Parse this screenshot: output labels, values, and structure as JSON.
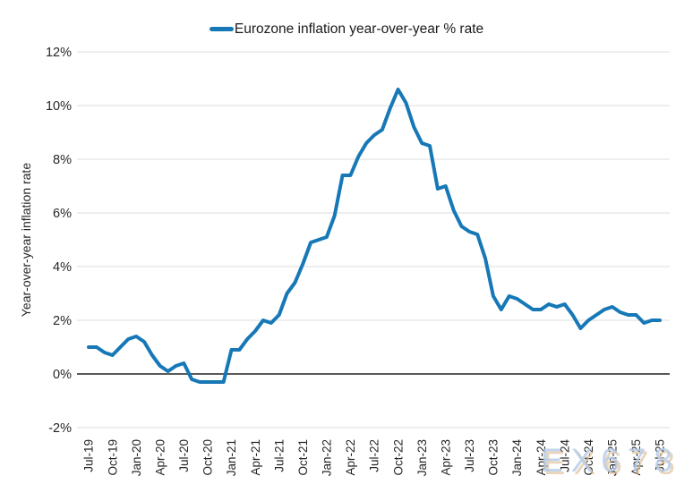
{
  "legend": {
    "label": "Eurozone inflation year-over-year % rate"
  },
  "watermark": {
    "text": "EX678"
  },
  "colors": {
    "line": "#1678b6",
    "zero_line": "#595959",
    "gridline": "#e4e4e4",
    "text": "#262626"
  },
  "chart_data": {
    "type": "line",
    "title": "",
    "xlabel": "",
    "ylabel": "Year-over-year inflation rate",
    "ylim": [
      -2,
      12
    ],
    "grid": "horizontal",
    "legend_position": "top-center",
    "y_ticks": [
      -2,
      0,
      2,
      4,
      6,
      8,
      10,
      12
    ],
    "y_tick_labels": [
      "-2%",
      "0%",
      "2%",
      "4%",
      "6%",
      "8%",
      "10%",
      "12%"
    ],
    "x_tick_labels": [
      "Jul-19",
      "Oct-19",
      "Jan-20",
      "Apr-20",
      "Jul-20",
      "Oct-20",
      "Jan-21",
      "Apr-21",
      "Jul-21",
      "Oct-21",
      "Jan-22",
      "Apr-22",
      "Jul-22",
      "Oct-22",
      "Jan-23",
      "Apr-23",
      "Jul-23",
      "Oct-23",
      "Jan-24",
      "Apr-24",
      "Jul-24",
      "Oct-24",
      "Jan-25",
      "Apr-25",
      "Jul-25"
    ],
    "x_tick_every_n_months": 3,
    "x": [
      "Jul-19",
      "Aug-19",
      "Sep-19",
      "Oct-19",
      "Nov-19",
      "Dec-19",
      "Jan-20",
      "Feb-20",
      "Mar-20",
      "Apr-20",
      "May-20",
      "Jun-20",
      "Jul-20",
      "Aug-20",
      "Sep-20",
      "Oct-20",
      "Nov-20",
      "Dec-20",
      "Jan-21",
      "Feb-21",
      "Mar-21",
      "Apr-21",
      "May-21",
      "Jun-21",
      "Jul-21",
      "Aug-21",
      "Sep-21",
      "Oct-21",
      "Nov-21",
      "Dec-21",
      "Jan-22",
      "Feb-22",
      "Mar-22",
      "Apr-22",
      "May-22",
      "Jun-22",
      "Jul-22",
      "Aug-22",
      "Sep-22",
      "Oct-22",
      "Nov-22",
      "Dec-22",
      "Jan-23",
      "Feb-23",
      "Mar-23",
      "Apr-23",
      "May-23",
      "Jun-23",
      "Jul-23",
      "Aug-23",
      "Sep-23",
      "Oct-23",
      "Nov-23",
      "Dec-23",
      "Jan-24",
      "Feb-24",
      "Mar-24",
      "Apr-24",
      "May-24",
      "Jun-24",
      "Jul-24",
      "Aug-24",
      "Sep-24",
      "Oct-24",
      "Nov-24",
      "Dec-24",
      "Jan-25",
      "Feb-25",
      "Mar-25",
      "Apr-25",
      "May-25",
      "Jun-25",
      "Jul-25"
    ],
    "series": [
      {
        "name": "Eurozone inflation year-over-year % rate",
        "color": "#1678b6",
        "values": [
          1.0,
          1.0,
          0.8,
          0.7,
          1.0,
          1.3,
          1.4,
          1.2,
          0.7,
          0.3,
          0.1,
          0.3,
          0.4,
          -0.2,
          -0.3,
          -0.3,
          -0.3,
          -0.3,
          0.9,
          0.9,
          1.3,
          1.6,
          2.0,
          1.9,
          2.2,
          3.0,
          3.4,
          4.1,
          4.9,
          5.0,
          5.1,
          5.9,
          7.4,
          7.4,
          8.1,
          8.6,
          8.9,
          9.1,
          9.9,
          10.6,
          10.1,
          9.2,
          8.6,
          8.5,
          6.9,
          7.0,
          6.1,
          5.5,
          5.3,
          5.2,
          4.3,
          2.9,
          2.4,
          2.9,
          2.8,
          2.6,
          2.4,
          2.4,
          2.6,
          2.5,
          2.6,
          2.2,
          1.7,
          2.0,
          2.2,
          2.4,
          2.5,
          2.3,
          2.2,
          2.2,
          1.9,
          2.0,
          2.0
        ]
      }
    ]
  }
}
